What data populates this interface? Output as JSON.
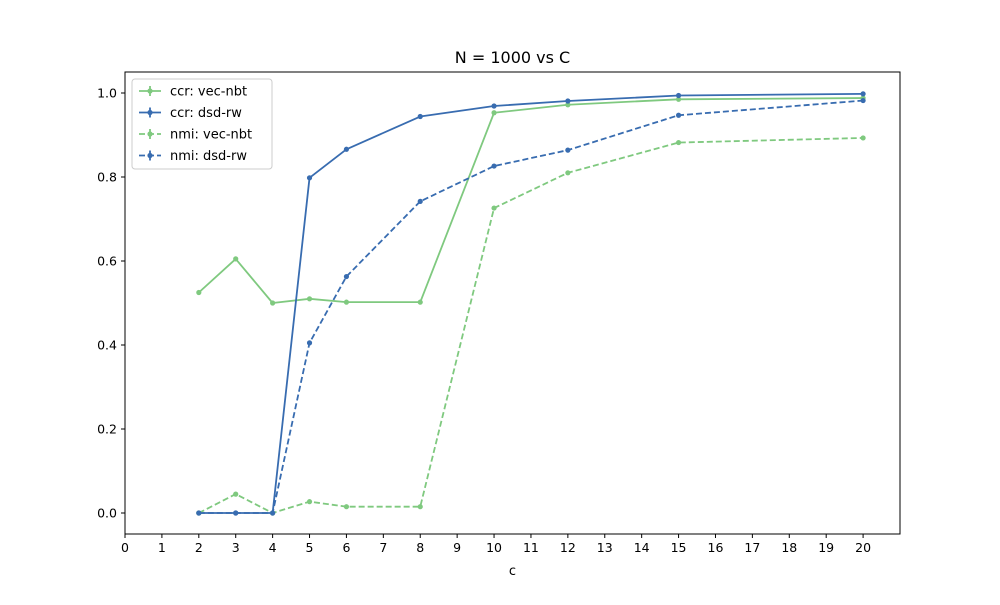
{
  "chart_data": {
    "type": "line",
    "title": "N = 1000 vs C",
    "xlabel": "c",
    "ylabel": "",
    "xlim": [
      0,
      21
    ],
    "ylim": [
      -0.05,
      1.05
    ],
    "xticks": [
      0,
      1,
      2,
      3,
      4,
      5,
      6,
      7,
      8,
      9,
      10,
      11,
      12,
      13,
      14,
      15,
      16,
      17,
      18,
      19,
      20
    ],
    "yticks": [
      0.0,
      0.2,
      0.4,
      0.6,
      0.8,
      1.0
    ],
    "ytick_labels": [
      "0.0",
      "0.2",
      "0.4",
      "0.6",
      "0.8",
      "1.0"
    ],
    "grid": false,
    "legend_position": "top-left",
    "x": [
      2,
      3,
      4,
      5,
      6,
      8,
      10,
      12,
      15,
      20
    ],
    "series": [
      {
        "name": "ccr: vec-nbt",
        "color": "#7fc97f",
        "style": "solid",
        "values": [
          0.525,
          0.605,
          0.5,
          0.51,
          0.502,
          0.502,
          0.953,
          0.972,
          0.985,
          0.988
        ]
      },
      {
        "name": "ccr: dsd-rw",
        "color": "#386cb0",
        "style": "solid",
        "values": [
          0.0,
          0.0,
          0.0,
          0.798,
          0.866,
          0.944,
          0.969,
          0.981,
          0.994,
          0.998
        ]
      },
      {
        "name": "nmi: vec-nbt",
        "color": "#7fc97f",
        "style": "dashed",
        "values": [
          0.0,
          0.045,
          0.0,
          0.027,
          0.015,
          0.015,
          0.726,
          0.81,
          0.882,
          0.893
        ]
      },
      {
        "name": "nmi: dsd-rw",
        "color": "#386cb0",
        "style": "dashed",
        "values": [
          0.0,
          0.0,
          0.0,
          0.405,
          0.563,
          0.742,
          0.826,
          0.864,
          0.947,
          0.982
        ]
      }
    ]
  }
}
